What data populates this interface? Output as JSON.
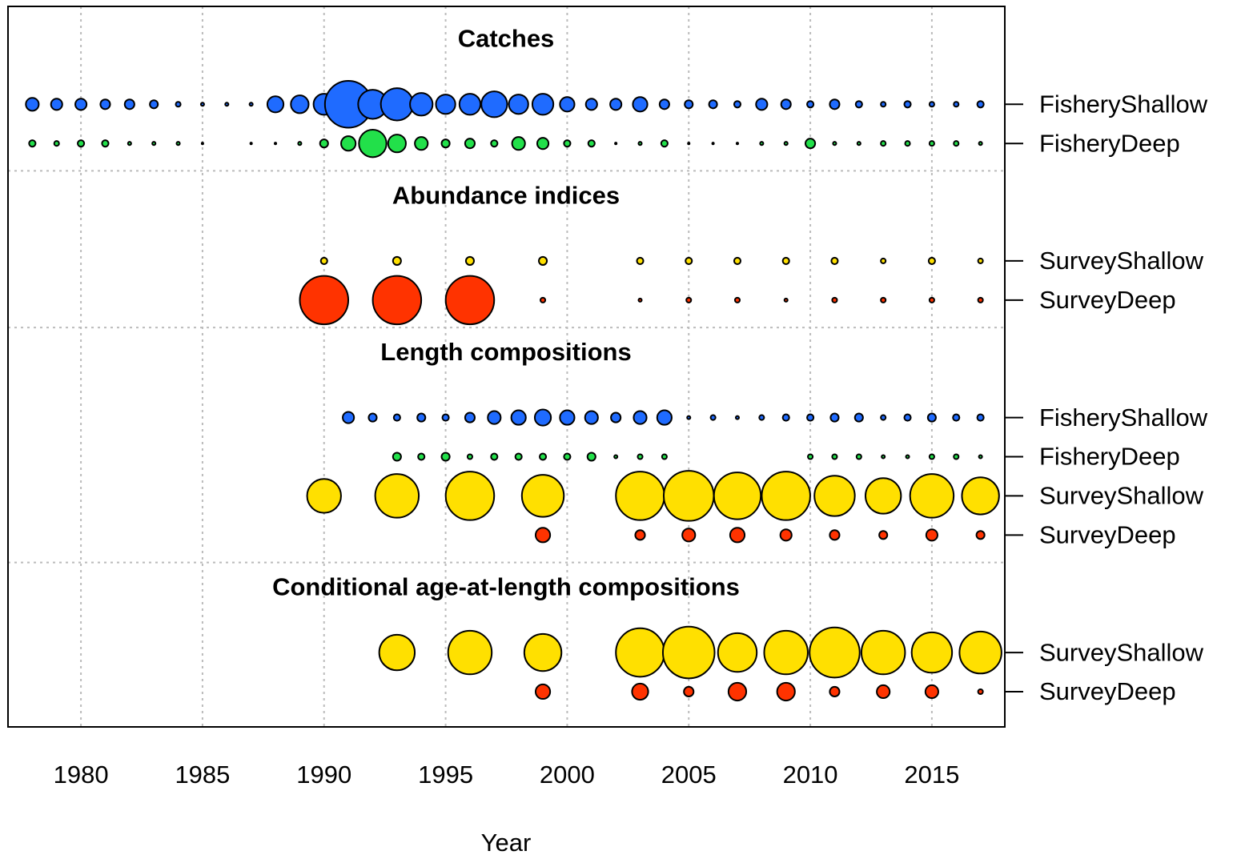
{
  "chart_data": {
    "type": "bubble",
    "xlabel": "Year",
    "xlim": [
      1977,
      2018
    ],
    "xticks": [
      1980,
      1985,
      1990,
      1995,
      2000,
      2005,
      2010,
      2015
    ],
    "grid": true,
    "sections": [
      {
        "title": "Catches",
        "rows": [
          {
            "name": "FisheryShallow",
            "color": "#1f6bff",
            "x": [
              1978,
              1979,
              1980,
              1981,
              1982,
              1983,
              1984,
              1985,
              1986,
              1987,
              1988,
              1989,
              1990,
              1991,
              1992,
              1993,
              1994,
              1995,
              1996,
              1997,
              1998,
              1999,
              2000,
              2001,
              2002,
              2003,
              2004,
              2005,
              2006,
              2007,
              2008,
              2009,
              2010,
              2011,
              2012,
              2013,
              2014,
              2015,
              2016,
              2017
            ],
            "sizes": [
              8,
              7,
              7,
              6,
              6,
              5,
              3,
              2,
              2,
              2,
              10,
              11,
              13,
              29,
              18,
              20,
              14,
              12,
              13,
              16,
              12,
              13,
              9,
              7,
              7,
              9,
              6,
              5,
              5,
              4,
              7,
              6,
              4,
              6,
              4,
              3,
              4,
              3,
              3,
              4
            ]
          },
          {
            "name": "FisheryDeep",
            "color": "#22e04a",
            "x": [
              1978,
              1979,
              1980,
              1981,
              1982,
              1983,
              1984,
              1985,
              1987,
              1988,
              1989,
              1990,
              1991,
              1992,
              1993,
              1994,
              1995,
              1996,
              1997,
              1998,
              1999,
              2000,
              2001,
              2002,
              2003,
              2004,
              2005,
              2006,
              2007,
              2008,
              2009,
              2010,
              2011,
              2012,
              2013,
              2014,
              2015,
              2016,
              2017
            ],
            "sizes": [
              4,
              3,
              4,
              4,
              2,
              2,
              2,
              1,
              1,
              1,
              2,
              5,
              9,
              17,
              11,
              8,
              5,
              6,
              4,
              8,
              7,
              4,
              4,
              1,
              2,
              4,
              1,
              1,
              1,
              2,
              2,
              6,
              2,
              2,
              3,
              3,
              3,
              3,
              2
            ]
          }
        ]
      },
      {
        "title": "Abundance indices",
        "rows": [
          {
            "name": "SurveyShallow",
            "color": "#ffe000",
            "x": [
              1990,
              1993,
              1996,
              1999,
              2003,
              2005,
              2007,
              2009,
              2011,
              2013,
              2015,
              2017
            ],
            "sizes": [
              4,
              5,
              5,
              5,
              4,
              4,
              4,
              4,
              4,
              3,
              4,
              3
            ]
          },
          {
            "name": "SurveyDeep",
            "color": "#ff3300",
            "x": [
              1990,
              1993,
              1996,
              1999,
              2003,
              2005,
              2007,
              2009,
              2011,
              2013,
              2015,
              2017
            ],
            "sizes": [
              30,
              30,
              30,
              3,
              2,
              3,
              3,
              2,
              3,
              3,
              3,
              3
            ]
          }
        ]
      },
      {
        "title": "Length compositions",
        "rows": [
          {
            "name": "FisheryShallow",
            "color": "#1f6bff",
            "x": [
              1991,
              1992,
              1993,
              1994,
              1995,
              1996,
              1997,
              1998,
              1999,
              2000,
              2001,
              2002,
              2003,
              2004,
              2005,
              2006,
              2007,
              2008,
              2009,
              2010,
              2011,
              2012,
              2013,
              2014,
              2015,
              2016,
              2017
            ],
            "sizes": [
              7,
              5,
              4,
              5,
              4,
              6,
              8,
              9,
              10,
              9,
              8,
              6,
              8,
              9,
              2,
              3,
              2,
              3,
              4,
              4,
              5,
              5,
              3,
              4,
              5,
              4,
              4
            ]
          },
          {
            "name": "FisheryDeep",
            "color": "#22e04a",
            "x": [
              1993,
              1994,
              1995,
              1996,
              1997,
              1998,
              1999,
              2000,
              2001,
              2002,
              2003,
              2004,
              2010,
              2011,
              2012,
              2013,
              2014,
              2015,
              2016,
              2017
            ],
            "sizes": [
              5,
              4,
              5,
              3,
              4,
              4,
              4,
              4,
              5,
              2,
              3,
              3,
              3,
              3,
              3,
              2,
              2,
              3,
              3,
              2
            ]
          },
          {
            "name": "SurveyShallow",
            "color": "#ffe000",
            "x": [
              1990,
              1993,
              1996,
              1999,
              2003,
              2005,
              2007,
              2009,
              2011,
              2013,
              2015,
              2017
            ],
            "sizes": [
              21,
              27,
              30,
              26,
              30,
              31,
              29,
              30,
              25,
              22,
              27,
              23
            ]
          },
          {
            "name": "SurveyDeep",
            "color": "#ff3300",
            "x": [
              1999,
              2003,
              2005,
              2007,
              2009,
              2011,
              2013,
              2015,
              2017
            ],
            "sizes": [
              9,
              6,
              8,
              9,
              7,
              6,
              5,
              7,
              5
            ]
          }
        ]
      },
      {
        "title": "Conditional age-at-length compositions",
        "rows": [
          {
            "name": "SurveyShallow",
            "color": "#ffe000",
            "x": [
              1993,
              1996,
              1999,
              2003,
              2005,
              2007,
              2009,
              2011,
              2013,
              2015,
              2017
            ],
            "sizes": [
              22,
              27,
              23,
              30,
              32,
              24,
              27,
              31,
              27,
              25,
              26
            ]
          },
          {
            "name": "SurveyDeep",
            "color": "#ff3300",
            "x": [
              1999,
              2003,
              2005,
              2007,
              2009,
              2011,
              2013,
              2015,
              2017
            ],
            "sizes": [
              9,
              10,
              6,
              11,
              11,
              6,
              8,
              8,
              3
            ]
          }
        ]
      }
    ]
  }
}
